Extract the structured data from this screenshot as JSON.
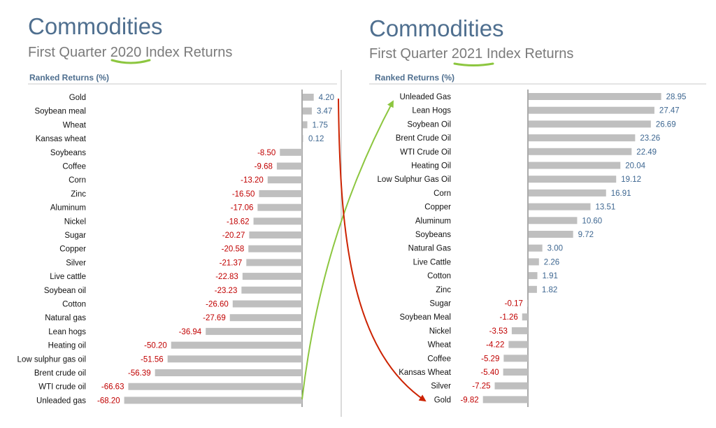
{
  "charts": [
    {
      "title": "Commodities",
      "subtitle_pre": "First Quarter ",
      "subtitle_year": "2020",
      "subtitle_post": " Index Returns",
      "section_label": "Ranked Returns (%)"
    },
    {
      "title": "Commodities",
      "subtitle_pre": "First Quarter ",
      "subtitle_year": "2021",
      "subtitle_post": " Index Returns",
      "section_label": "Ranked Returns (%)"
    }
  ],
  "colors": {
    "bar": "#bfbfbf",
    "positive_label": "#3e6791",
    "negative_label": "#c00000",
    "title": "#4f6f8f",
    "highlight_underline": "#8cc63f",
    "arrow_green": "#8cc63f",
    "arrow_red": "#cc2200"
  },
  "annotations": [
    {
      "kind": "arrow",
      "from": "Unleaded gas (2020)",
      "to": "Unleaded Gas (2021)",
      "color": "green"
    },
    {
      "kind": "arrow",
      "from": "Gold (2020)",
      "to": "Gold (2021)",
      "color": "red"
    }
  ],
  "chart_data": [
    {
      "type": "bar",
      "orientation": "horizontal",
      "title": "Commodities",
      "subtitle": "First Quarter 2020 Index Returns",
      "section_label": "Ranked Returns (%)",
      "grid": false,
      "legend": "none",
      "xlim": [
        -68.2,
        4.2
      ],
      "categories": [
        "Gold",
        "Soybean meal",
        "Wheat",
        "Kansas wheat",
        "Soybeans",
        "Coffee",
        "Corn",
        "Zinc",
        "Aluminum",
        "Nickel",
        "Sugar",
        "Copper",
        "Silver",
        "Live cattle",
        "Soybean oil",
        "Cotton",
        "Natural gas",
        "Lean hogs",
        "Heating oil",
        "Low sulphur gas oil",
        "Brent crude oil",
        "WTI crude oil",
        "Unleaded gas"
      ],
      "values": [
        4.2,
        3.47,
        1.75,
        0.12,
        -8.5,
        -9.68,
        -13.2,
        -16.5,
        -17.06,
        -18.62,
        -20.27,
        -20.58,
        -21.37,
        -22.83,
        -23.23,
        -26.6,
        -27.69,
        -36.94,
        -50.2,
        -51.56,
        -56.39,
        -66.63,
        -68.2
      ],
      "value_labels": [
        "4.20",
        "3.47",
        "1.75",
        "0.12",
        "-8.50",
        "-9.68",
        "-13.20",
        "-16.50",
        "-17.06",
        "-18.62",
        "-20.27",
        "-20.58",
        "-21.37",
        "-22.83",
        "-23.23",
        "-26.60",
        "-27.69",
        "-36.94",
        "-50.20",
        "-51.56",
        "-56.39",
        "-66.63",
        "-68.20"
      ]
    },
    {
      "type": "bar",
      "orientation": "horizontal",
      "title": "Commodities",
      "subtitle": "First Quarter 2021 Index Returns",
      "section_label": "Ranked Returns (%)",
      "grid": false,
      "legend": "none",
      "xlim": [
        -9.82,
        28.95
      ],
      "categories": [
        "Unleaded Gas",
        "Lean Hogs",
        "Soybean Oil",
        "Brent Crude Oil",
        "WTI Crude Oil",
        "Heating Oil",
        "Low Sulphur Gas Oil",
        "Corn",
        "Copper",
        "Aluminum",
        "Soybeans",
        "Natural Gas",
        "Live Cattle",
        "Cotton",
        "Zinc",
        "Sugar",
        "Soybean Meal",
        "Nickel",
        "Wheat",
        "Coffee",
        "Kansas Wheat",
        "Silver",
        "Gold"
      ],
      "values": [
        28.95,
        27.47,
        26.69,
        23.26,
        22.49,
        20.04,
        19.12,
        16.91,
        13.51,
        10.6,
        9.72,
        3.0,
        2.26,
        1.91,
        1.82,
        -0.17,
        -1.26,
        -3.53,
        -4.22,
        -5.29,
        -5.4,
        -7.25,
        -9.82
      ],
      "value_labels": [
        "28.95",
        "27.47",
        "26.69",
        "23.26",
        "22.49",
        "20.04",
        "19.12",
        "16.91",
        "13.51",
        "10.60",
        "9.72",
        "3.00",
        "2.26",
        "1.91",
        "1.82",
        "-0.17",
        "-1.26",
        "-3.53",
        "-4.22",
        "-5.29",
        "-5.40",
        "-7.25",
        "-9.82"
      ]
    }
  ]
}
